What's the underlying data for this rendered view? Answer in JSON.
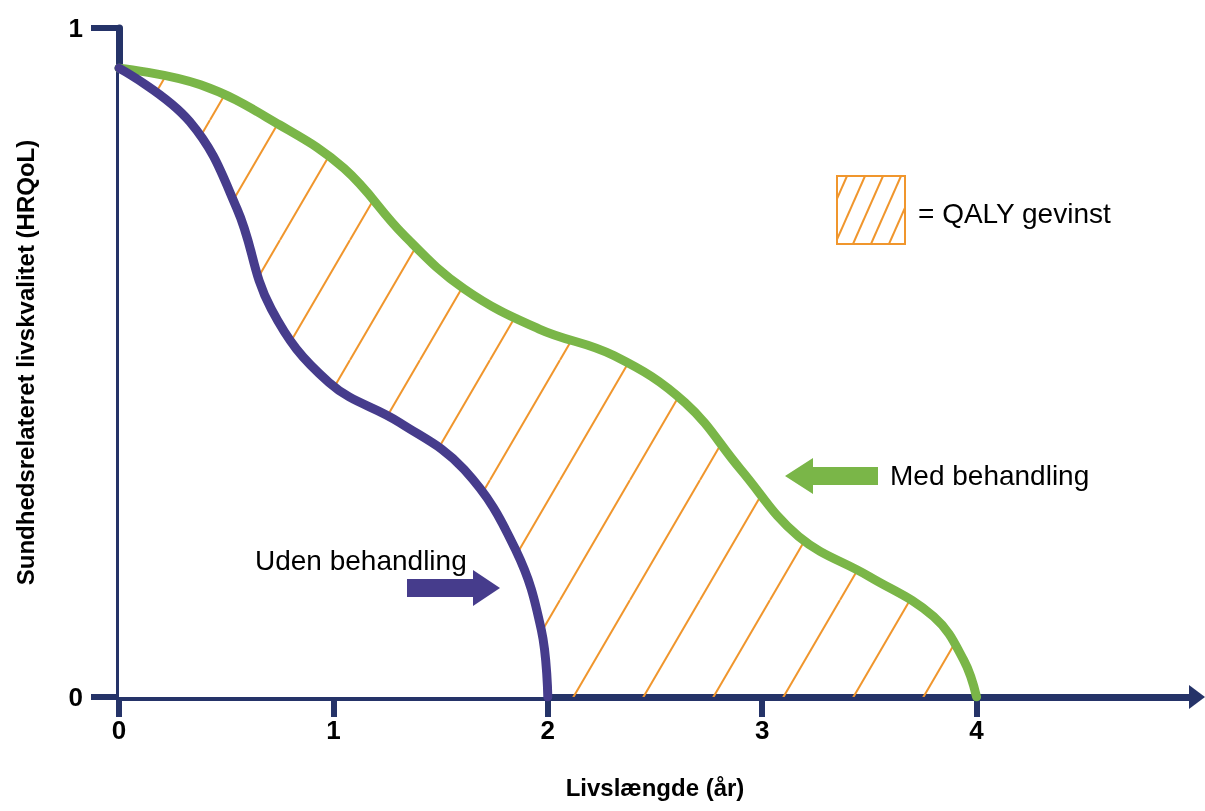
{
  "chart_data": {
    "type": "line",
    "xlabel": "Livslængde (år)",
    "ylabel": "Sundhedsrelateret livskvalitet (HRQoL)",
    "xlim": [
      0,
      5
    ],
    "xticks": [
      0,
      1,
      2,
      3,
      4
    ],
    "ylim": [
      0,
      1
    ],
    "yticks": [
      0,
      1
    ],
    "grid": false,
    "legend": "right",
    "line_style": "solid",
    "series": [
      {
        "name": "Med behandling",
        "type": "area",
        "color": "#7ab648",
        "x": [
          0,
          0.38,
          0.75,
          1.05,
          1.33,
          1.61,
          1.96,
          2.31,
          2.64,
          2.9,
          3.17,
          3.5,
          3.8,
          3.94,
          4
        ],
        "values": [
          0.94,
          0.915,
          0.855,
          0.79,
          0.69,
          0.61,
          0.55,
          0.51,
          0.44,
          0.34,
          0.24,
          0.18,
          0.12,
          0.055,
          0
        ]
      },
      {
        "name": "Uden behandling",
        "color": "#463c8c",
        "x": [
          0,
          0.33,
          0.55,
          0.71,
          0.98,
          1.31,
          1.61,
          1.85,
          1.97,
          2
        ],
        "values": [
          0.94,
          0.86,
          0.73,
          0.58,
          0.47,
          0.41,
          0.34,
          0.22,
          0.1,
          0
        ]
      }
    ],
    "annotations": [
      "= QALY gevinst"
    ]
  }
}
